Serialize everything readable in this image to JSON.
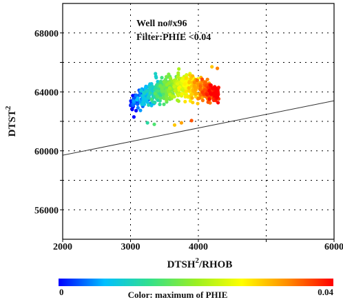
{
  "chart_data": {
    "type": "scatter",
    "annotation_lines": [
      "Well no#x96",
      "Filter:PHIE <0.04"
    ],
    "xlabel_base": "DTSH",
    "xlabel_sup": "2",
    "xlabel_tail": "/RHOB",
    "ylabel_base": "DTST",
    "ylabel_sup": "2",
    "xlim": [
      2000,
      6000
    ],
    "ylim": [
      54000,
      70000
    ],
    "x_ticks": [
      2000,
      3000,
      4000,
      5000,
      6000
    ],
    "x_tick_labels": [
      "2000",
      "3000",
      "4000",
      "",
      "6000"
    ],
    "y_ticks": [
      56000,
      58000,
      60000,
      62000,
      64000,
      66000,
      68000
    ],
    "y_tick_labels": [
      "56000",
      "",
      "60000",
      "",
      "64000",
      "",
      "68000"
    ],
    "grid": true,
    "trend_line": {
      "x": [
        2000,
        6000
      ],
      "y": [
        59700,
        63400
      ]
    },
    "colorbar": {
      "label": "Color: maximum of PHIE",
      "min_label": "0",
      "max_label": "0.04",
      "range": [
        0,
        0.04
      ],
      "colors": [
        "#0000ff",
        "#00bfff",
        "#33e08a",
        "#9aef22",
        "#ffff00",
        "#ff8c00",
        "#ff0000"
      ]
    },
    "point_cloud": {
      "x_range": [
        3000,
        4300
      ],
      "y_range": [
        61800,
        66100
      ],
      "z_range": [
        0,
        0.04
      ],
      "count": 700,
      "note": "dense scatter; color increases left to right"
    }
  }
}
